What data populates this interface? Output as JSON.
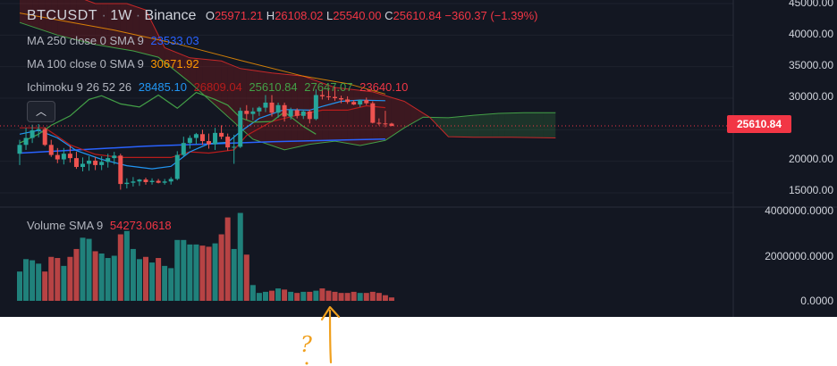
{
  "header": {
    "symbol": "BTCUSDT",
    "interval": "1W",
    "exchange": "Binance",
    "open_label": "O",
    "open": "25971.21",
    "high_label": "H",
    "high": "26108.02",
    "low_label": "L",
    "low": "25540.00",
    "close_label": "C",
    "close": "25610.84",
    "change": "−360.37 (−1.39%)"
  },
  "indicators": {
    "ma250": {
      "label": "MA 250 close 0 SMA 9",
      "value": "23533.03",
      "color": "#2962ff"
    },
    "ma100": {
      "label": "MA 100 close 0 SMA 9",
      "value": "30671.92",
      "color": "#ff9800"
    },
    "ichimoku": {
      "label": "Ichimoku 9 26 52 26",
      "values": [
        "28485.10",
        "26809.04",
        "25610.84",
        "27647.07",
        "23640.10"
      ],
      "colors": [
        "#2196f3",
        "#b71c1c",
        "#43a047",
        "#43a047",
        "#f23645"
      ]
    },
    "volume": {
      "label": "Volume SMA 9",
      "value": "54273.0618"
    }
  },
  "price_scale": {
    "ticks": [
      "45000.00",
      "40000.00",
      "35000.00",
      "30000.00",
      "20000.00",
      "15000.00"
    ],
    "last_price": "25610.84",
    "last_price_color": "#f23645"
  },
  "volume_scale": {
    "ticks": [
      "4000000.0000",
      "2000000.0000",
      "0.0000"
    ]
  },
  "annotation": {
    "text": "?",
    "color": "#f0a01e"
  },
  "colors": {
    "up": "#26a69a",
    "down": "#ef5350",
    "vol_up": "#26a69a",
    "vol_down": "#ef5350",
    "background": "#131722"
  },
  "chart_data": {
    "type": "candlestick",
    "title": "BTCUSDT 1W Binance",
    "ylim": [
      12000,
      46500
    ],
    "volume_ylim": [
      -300000,
      4000000
    ],
    "candles": [
      {
        "o": 21200,
        "h": 23400,
        "l": 19400,
        "c": 22600
      },
      {
        "o": 22600,
        "h": 25300,
        "l": 21800,
        "c": 23700
      },
      {
        "o": 23700,
        "h": 25800,
        "l": 22900,
        "c": 24900
      },
      {
        "o": 24900,
        "h": 25900,
        "l": 23800,
        "c": 25100
      },
      {
        "o": 25100,
        "h": 25400,
        "l": 22400,
        "c": 22600
      },
      {
        "o": 22600,
        "h": 23400,
        "l": 20700,
        "c": 21000
      },
      {
        "o": 21000,
        "h": 22100,
        "l": 19700,
        "c": 20300
      },
      {
        "o": 20300,
        "h": 22100,
        "l": 19500,
        "c": 21200
      },
      {
        "o": 21200,
        "h": 22500,
        "l": 19800,
        "c": 20500
      },
      {
        "o": 20500,
        "h": 21500,
        "l": 18800,
        "c": 19100
      },
      {
        "o": 19100,
        "h": 20600,
        "l": 18400,
        "c": 19600
      },
      {
        "o": 19600,
        "h": 20800,
        "l": 18500,
        "c": 20100
      },
      {
        "o": 20100,
        "h": 20700,
        "l": 18600,
        "c": 19400
      },
      {
        "o": 19400,
        "h": 20800,
        "l": 18600,
        "c": 19900
      },
      {
        "o": 19900,
        "h": 21200,
        "l": 19000,
        "c": 20500
      },
      {
        "o": 20500,
        "h": 21500,
        "l": 19500,
        "c": 20900
      },
      {
        "o": 20900,
        "h": 21200,
        "l": 15500,
        "c": 16400
      },
      {
        "o": 16400,
        "h": 17300,
        "l": 15700,
        "c": 16600
      },
      {
        "o": 16600,
        "h": 17500,
        "l": 16000,
        "c": 16800
      },
      {
        "o": 16800,
        "h": 17200,
        "l": 16100,
        "c": 17100
      },
      {
        "o": 17100,
        "h": 17400,
        "l": 16300,
        "c": 16700
      },
      {
        "o": 16700,
        "h": 17300,
        "l": 16300,
        "c": 16900
      },
      {
        "o": 16900,
        "h": 17200,
        "l": 16500,
        "c": 16600
      },
      {
        "o": 16600,
        "h": 17200,
        "l": 16300,
        "c": 16800
      },
      {
        "o": 16800,
        "h": 17500,
        "l": 16300,
        "c": 17200
      },
      {
        "o": 17200,
        "h": 21600,
        "l": 17000,
        "c": 21000
      },
      {
        "o": 21000,
        "h": 23900,
        "l": 20800,
        "c": 22900
      },
      {
        "o": 22900,
        "h": 24100,
        "l": 22000,
        "c": 23700
      },
      {
        "o": 23700,
        "h": 24500,
        "l": 22700,
        "c": 24300
      },
      {
        "o": 24300,
        "h": 25000,
        "l": 22600,
        "c": 23200
      },
      {
        "o": 23200,
        "h": 24400,
        "l": 22000,
        "c": 22700
      },
      {
        "o": 22700,
        "h": 25300,
        "l": 21800,
        "c": 24500
      },
      {
        "o": 24500,
        "h": 25700,
        "l": 23500,
        "c": 23900
      },
      {
        "o": 23900,
        "h": 24400,
        "l": 21700,
        "c": 22200
      },
      {
        "o": 22200,
        "h": 24200,
        "l": 19600,
        "c": 22300
      },
      {
        "o": 22300,
        "h": 28500,
        "l": 22100,
        "c": 28000
      },
      {
        "o": 28000,
        "h": 28900,
        "l": 26600,
        "c": 27500
      },
      {
        "o": 27500,
        "h": 28500,
        "l": 26500,
        "c": 27900
      },
      {
        "o": 27900,
        "h": 28700,
        "l": 27200,
        "c": 28500
      },
      {
        "o": 28500,
        "h": 30500,
        "l": 27800,
        "c": 29300
      },
      {
        "o": 29300,
        "h": 30500,
        "l": 27100,
        "c": 27700
      },
      {
        "o": 27700,
        "h": 29300,
        "l": 26900,
        "c": 28900
      },
      {
        "o": 28900,
        "h": 29300,
        "l": 26300,
        "c": 27100
      },
      {
        "o": 27100,
        "h": 28500,
        "l": 26600,
        "c": 28100
      },
      {
        "o": 28100,
        "h": 28400,
        "l": 26800,
        "c": 27200
      },
      {
        "o": 27200,
        "h": 28200,
        "l": 26700,
        "c": 27900
      },
      {
        "o": 27900,
        "h": 28200,
        "l": 26000,
        "c": 26700
      },
      {
        "o": 26700,
        "h": 31400,
        "l": 26500,
        "c": 30500
      },
      {
        "o": 30500,
        "h": 31300,
        "l": 29800,
        "c": 30300
      },
      {
        "o": 30300,
        "h": 31500,
        "l": 29700,
        "c": 30200
      },
      {
        "o": 30200,
        "h": 31800,
        "l": 29600,
        "c": 30000
      },
      {
        "o": 30000,
        "h": 30400,
        "l": 29200,
        "c": 29800
      },
      {
        "o": 29800,
        "h": 30300,
        "l": 29100,
        "c": 29400
      },
      {
        "o": 29400,
        "h": 29700,
        "l": 28900,
        "c": 29000
      },
      {
        "o": 29000,
        "h": 29800,
        "l": 28600,
        "c": 29700
      },
      {
        "o": 29700,
        "h": 30100,
        "l": 28900,
        "c": 29200
      },
      {
        "o": 29200,
        "h": 29500,
        "l": 26000,
        "c": 26100
      },
      {
        "o": 26100,
        "h": 26800,
        "l": 25700,
        "c": 26000
      },
      {
        "o": 26000,
        "h": 28000,
        "l": 25400,
        "c": 25900
      },
      {
        "o": 25971.21,
        "h": 26108.02,
        "l": 25540,
        "c": 25610.84
      }
    ],
    "volume": [
      1300000,
      1850000,
      1800000,
      1650000,
      1300000,
      1950000,
      1900000,
      1550000,
      1950000,
      2300000,
      2800000,
      2750000,
      2200000,
      2100000,
      1900000,
      2000000,
      2950000,
      3100000,
      2300000,
      1850000,
      1950000,
      1700000,
      1900000,
      1550000,
      1450000,
      2700000,
      2700000,
      2500000,
      2500000,
      2450000,
      2400000,
      2550000,
      2950000,
      3700000,
      2300000,
      3900000,
      2050000,
      700000,
      350000,
      400000,
      450000,
      550000,
      500000,
      400000,
      350000,
      400000,
      400000,
      450000,
      550000,
      450000,
      400000,
      350000,
      350000,
      400000,
      350000,
      350000,
      400000,
      350000,
      250000,
      150000
    ],
    "ma250": [
      [
        0,
        21300
      ],
      [
        20,
        22400
      ],
      [
        40,
        23100
      ],
      [
        58,
        23533.03
      ]
    ],
    "ma100": [
      [
        0,
        43500
      ],
      [
        15,
        40800
      ],
      [
        25,
        38600
      ],
      [
        35,
        36000
      ],
      [
        45,
        33500
      ],
      [
        52,
        32300
      ],
      [
        58,
        30671.92
      ]
    ],
    "tenkan": [
      [
        0,
        24300
      ],
      [
        3,
        24900
      ],
      [
        6,
        23700
      ],
      [
        9,
        21700
      ],
      [
        13,
        20300
      ],
      [
        17,
        19300
      ],
      [
        21,
        18800
      ],
      [
        24,
        19200
      ],
      [
        27,
        21500
      ],
      [
        30,
        22800
      ],
      [
        33,
        23000
      ],
      [
        35,
        24700
      ],
      [
        38,
        26800
      ],
      [
        42,
        28200
      ],
      [
        46,
        28100
      ],
      [
        48,
        28700
      ],
      [
        51,
        29500
      ],
      [
        54,
        29700
      ],
      [
        58,
        29600
      ]
    ],
    "kijun": [
      [
        0,
        25300
      ],
      [
        4,
        25300
      ],
      [
        8,
        22600
      ],
      [
        12,
        21100
      ],
      [
        16,
        20600
      ],
      [
        20,
        20600
      ],
      [
        24,
        20600
      ],
      [
        27,
        21500
      ],
      [
        30,
        21300
      ],
      [
        34,
        21800
      ],
      [
        36,
        24100
      ],
      [
        40,
        26300
      ],
      [
        44,
        27300
      ],
      [
        48,
        28100
      ],
      [
        52,
        28100
      ],
      [
        55,
        28800
      ],
      [
        58,
        28500
      ]
    ],
    "chikou": [
      [
        0,
        22900
      ],
      [
        3,
        24300
      ],
      [
        5,
        25700
      ],
      [
        8,
        27200
      ],
      [
        11,
        29800
      ],
      [
        13,
        30400
      ],
      [
        16,
        29100
      ],
      [
        19,
        28600
      ],
      [
        22,
        30500
      ],
      [
        25,
        28400
      ],
      [
        28,
        30900
      ],
      [
        31,
        29800
      ],
      [
        33,
        28900
      ],
      [
        35,
        26900
      ],
      [
        37,
        26200
      ],
      [
        40,
        26300
      ],
      [
        42,
        27800
      ],
      [
        45,
        25500
      ],
      [
        47,
        24300
      ]
    ],
    "cloud_a": [
      [
        0,
        42000
      ],
      [
        6,
        40000
      ],
      [
        12,
        38500
      ],
      [
        18,
        37500
      ],
      [
        22,
        36500
      ],
      [
        27,
        32500
      ],
      [
        32,
        28000
      ],
      [
        37,
        23500
      ],
      [
        42,
        21800
      ],
      [
        46,
        22700
      ],
      [
        50,
        23200
      ],
      [
        54,
        22500
      ],
      [
        58,
        23300
      ],
      [
        61,
        25300
      ],
      [
        64,
        27000
      ],
      [
        68,
        26900
      ],
      [
        72,
        27300
      ],
      [
        76,
        27600
      ],
      [
        80,
        27700
      ],
      [
        85,
        27700
      ]
    ],
    "cloud_b": [
      [
        0,
        46500
      ],
      [
        8,
        46500
      ],
      [
        12,
        45000
      ],
      [
        17,
        45000
      ],
      [
        20,
        44000
      ],
      [
        23,
        38000
      ],
      [
        27,
        36400
      ],
      [
        32,
        35900
      ],
      [
        35,
        34700
      ],
      [
        40,
        34000
      ],
      [
        45,
        33500
      ],
      [
        50,
        31700
      ],
      [
        56,
        31000
      ],
      [
        61,
        29500
      ],
      [
        65,
        27000
      ],
      [
        68,
        23900
      ],
      [
        72,
        23800
      ],
      [
        78,
        23800
      ],
      [
        85,
        23700
      ]
    ]
  }
}
